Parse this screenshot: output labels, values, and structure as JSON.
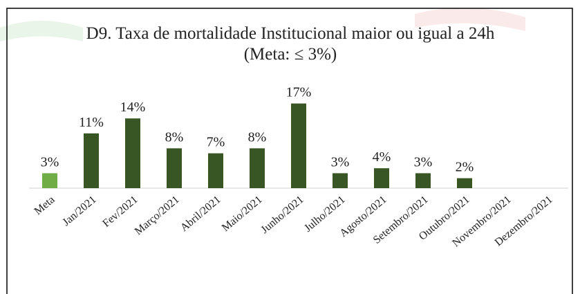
{
  "chart_data": {
    "type": "bar",
    "title": "D9. Taxa de mortalidade Institucional maior ou igual a 24h    (Meta: ≤ 3%)",
    "categories": [
      "Meta",
      "Jan/2021",
      "Fev/2021",
      "Março/2021",
      "Abril/2021",
      "Maio/2021",
      "Junho/2021",
      "Julho/2021",
      "Agosto/2021",
      "Setembro/2021",
      "Outubro/2021",
      "Novembro/2021",
      "Dezembro/2021"
    ],
    "values": [
      3,
      11,
      14,
      8,
      7,
      8,
      17,
      3,
      4,
      3,
      2,
      null,
      null
    ],
    "value_labels": [
      "3%",
      "11%",
      "14%",
      "8%",
      "7%",
      "8%",
      "17%",
      "3%",
      "4%",
      "3%",
      "2%",
      null,
      null
    ],
    "colors": [
      "#70ad47",
      "#375623",
      "#375623",
      "#375623",
      "#375623",
      "#375623",
      "#375623",
      "#375623",
      "#375623",
      "#375623",
      "#375623",
      "#375623",
      "#375623"
    ]
  }
}
